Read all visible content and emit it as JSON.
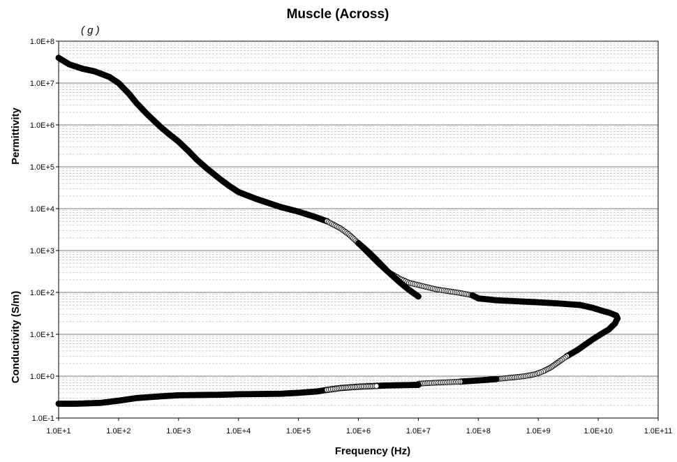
{
  "chart_data": {
    "type": "scatter",
    "title": "Muscle (Across)",
    "panel_label": "( g )",
    "xlabel": "Frequency (Hz)",
    "ylabel_upper": "Permittivity",
    "ylabel_lower": "Conductivity (S/m)",
    "x_scale": "log",
    "y_scale": "log",
    "xlim": [
      10,
      100000000000
    ],
    "ylim": [
      0.1,
      100000000
    ],
    "x_ticks": [
      {
        "value": 10,
        "label": "1.0E+1"
      },
      {
        "value": 100,
        "label": "1.0E+2"
      },
      {
        "value": 1000,
        "label": "1.0E+3"
      },
      {
        "value": 10000,
        "label": "1.0E+4"
      },
      {
        "value": 100000,
        "label": "1.0E+5"
      },
      {
        "value": 1000000,
        "label": "1.0E+6"
      },
      {
        "value": 10000000,
        "label": "1.0E+7"
      },
      {
        "value": 100000000,
        "label": "1.0E+8"
      },
      {
        "value": 1000000000,
        "label": "1.0E+9"
      },
      {
        "value": 10000000000,
        "label": "1.0E+10"
      },
      {
        "value": 100000000000,
        "label": "1.0E+11"
      }
    ],
    "y_ticks": [
      {
        "value": 0.1,
        "label": "1.0E-1"
      },
      {
        "value": 1,
        "label": "1.0E+0"
      },
      {
        "value": 10,
        "label": "1.0E+1"
      },
      {
        "value": 100,
        "label": "1.0E+2"
      },
      {
        "value": 1000,
        "label": "1.0E+3"
      },
      {
        "value": 10000,
        "label": "1.0E+4"
      },
      {
        "value": 100000,
        "label": "1.0E+5"
      },
      {
        "value": 1000000,
        "label": "1.0E+6"
      },
      {
        "value": 10000000,
        "label": "1.0E+7"
      },
      {
        "value": 100000000,
        "label": "1.0E+8"
      }
    ],
    "grid": true,
    "legend": "none",
    "series": [
      {
        "marker": "filled",
        "color": "#000000",
        "points": [
          [
            10,
            40000000
          ],
          [
            15,
            28000000
          ],
          [
            25,
            22000000
          ],
          [
            40,
            19000000
          ],
          [
            70,
            14000000
          ],
          [
            100,
            10000000
          ],
          [
            150,
            5500000
          ],
          [
            200,
            3300000
          ],
          [
            300,
            1800000
          ],
          [
            500,
            900000
          ],
          [
            700,
            600000
          ],
          [
            1000,
            400000
          ],
          [
            1500,
            230000
          ],
          [
            2000,
            150000
          ],
          [
            3000,
            90000
          ],
          [
            5000,
            50000
          ],
          [
            7000,
            35000
          ],
          [
            10000,
            25000
          ],
          [
            20000,
            17000
          ],
          [
            50000,
            11000
          ],
          [
            100000,
            8500
          ],
          [
            200000,
            6200
          ],
          [
            300000,
            5000
          ]
        ]
      },
      {
        "marker": "open",
        "color": "#000000",
        "points": [
          [
            300000,
            5000
          ],
          [
            500000,
            3400
          ],
          [
            700000,
            2400
          ],
          [
            1000000,
            1500
          ],
          [
            1500000,
            830
          ],
          [
            2000000,
            550
          ],
          [
            3000000,
            320
          ],
          [
            5000000,
            210
          ],
          [
            7000000,
            170
          ],
          [
            10000000,
            150
          ],
          [
            20000000,
            118
          ],
          [
            50000000,
            97
          ],
          [
            80000000,
            85
          ]
        ]
      },
      {
        "marker": "filled",
        "color": "#000000",
        "points": [
          [
            1000000,
            1500
          ],
          [
            1500000,
            900
          ],
          [
            2000000,
            600
          ],
          [
            3000000,
            330
          ],
          [
            5000000,
            170
          ],
          [
            7000000,
            115
          ],
          [
            10000000,
            80
          ]
        ]
      },
      {
        "marker": "filled",
        "color": "#000000",
        "points": [
          [
            80000000,
            85
          ],
          [
            100000000,
            72
          ],
          [
            200000000,
            65
          ],
          [
            500000000,
            61
          ],
          [
            1000000000,
            58
          ],
          [
            2000000000,
            55
          ],
          [
            5000000000,
            50
          ],
          [
            8000000000,
            43
          ],
          [
            12000000000,
            36
          ],
          [
            16000000000,
            32
          ],
          [
            20000000000,
            28
          ],
          [
            21000000000,
            24
          ],
          [
            19000000000,
            18
          ],
          [
            15000000000,
            13
          ],
          [
            11000000000,
            10
          ],
          [
            8000000000,
            7.5
          ],
          [
            6000000000,
            5.6
          ],
          [
            4500000000,
            4.2
          ],
          [
            3000000000,
            3.0
          ]
        ]
      },
      {
        "marker": "open",
        "color": "#000000",
        "points": [
          [
            3000000000,
            3.0
          ],
          [
            2200000000,
            2.2
          ],
          [
            1600000000,
            1.6
          ],
          [
            1200000000,
            1.3
          ],
          [
            900000000,
            1.12
          ],
          [
            600000000,
            1.0
          ],
          [
            300000000,
            0.9
          ],
          [
            200000000,
            0.85
          ]
        ]
      },
      {
        "marker": "filled",
        "color": "#000000",
        "points": [
          [
            200000000,
            0.85
          ],
          [
            100000000,
            0.79
          ],
          [
            50000000,
            0.74
          ]
        ]
      },
      {
        "marker": "open",
        "color": "#000000",
        "points": [
          [
            50000000,
            0.74
          ],
          [
            20000000,
            0.7
          ],
          [
            10000000,
            0.66
          ]
        ]
      },
      {
        "marker": "filled",
        "color": "#000000",
        "points": [
          [
            10,
            0.22
          ],
          [
            20,
            0.22
          ],
          [
            50,
            0.23
          ],
          [
            100,
            0.26
          ],
          [
            200,
            0.3
          ],
          [
            500,
            0.33
          ],
          [
            1000,
            0.35
          ],
          [
            5000,
            0.36
          ],
          [
            10000,
            0.37
          ],
          [
            50000,
            0.38
          ],
          [
            100000,
            0.4
          ],
          [
            200000,
            0.43
          ],
          [
            300000,
            0.47
          ],
          [
            500000,
            0.52
          ],
          [
            1000000,
            0.56
          ],
          [
            3000000,
            0.6
          ],
          [
            10000000,
            0.62
          ]
        ]
      },
      {
        "marker": "open",
        "color": "#000000",
        "points": [
          [
            300000,
            0.47
          ],
          [
            500000,
            0.52
          ],
          [
            1000000,
            0.56
          ],
          [
            2000000,
            0.58
          ]
        ]
      }
    ]
  }
}
